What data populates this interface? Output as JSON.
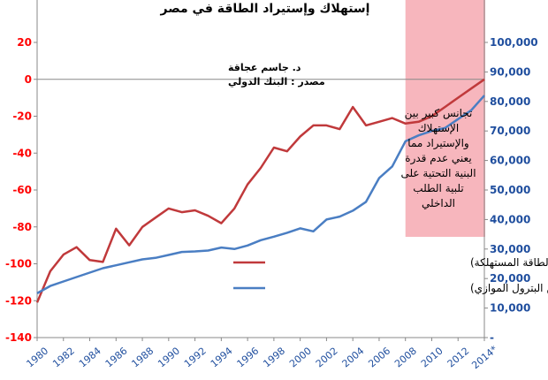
{
  "chart_data": {
    "type": "line",
    "title": "إستهلاك وإستيراد الطاقة في مصر",
    "author": "د. جاسم عجاقة",
    "source": "مصدر : البنك الدولي",
    "annotation": [
      "تجانس كبير بين",
      "الإستهلاك",
      "والإستيراد مما",
      "يعني عدم قدرة",
      "البنية التحتية على",
      "تلبية الطلب",
      "الداخلي"
    ],
    "highlight_start_year": 2008,
    "highlight_color": "#f7b6bd",
    "x": [
      1980,
      1981,
      1982,
      1983,
      1984,
      1985,
      1986,
      1987,
      1988,
      1989,
      1990,
      1991,
      1992,
      1993,
      1994,
      1995,
      1996,
      1997,
      1998,
      1999,
      2000,
      2001,
      2002,
      2003,
      2004,
      2005,
      2006,
      2007,
      2008,
      2009,
      2010,
      2011,
      2012,
      2013,
      2014
    ],
    "x_tick_labels": [
      "1980",
      "1982",
      "1984",
      "1986",
      "1988",
      "1990",
      "1992",
      "1994",
      "1996",
      "1998",
      "2000",
      "2002",
      "2004",
      "2006",
      "2008",
      "2010",
      "2012",
      "2014*"
    ],
    "y_left": {
      "ticks": [
        "20",
        "0",
        "-20",
        "-40",
        "-60",
        "-80",
        "-100",
        "-120",
        "-140"
      ],
      "ylim": [
        -140,
        20
      ]
    },
    "y_right": {
      "ticks": [
        "100,000",
        "90,000",
        "80,000",
        "70,000",
        "60,000",
        "50,000",
        "40,000",
        "30,000",
        "20,000",
        "10,000",
        "-"
      ],
      "ylim": [
        0,
        100000
      ]
    },
    "series": [
      {
        "name": "الإستيراد الصافي من الطاقة (% من الطاقة المستهلكة)",
        "axis": "left",
        "color": "#c0393b",
        "values": [
          -121,
          -104,
          -95,
          -91,
          -98,
          -99,
          -81,
          -90,
          -80,
          -75,
          -70,
          -72,
          -71,
          -74,
          -78,
          -70,
          -57,
          -48,
          -37,
          -39,
          -31,
          -25,
          -25,
          -27,
          -15,
          -25,
          -23,
          -21,
          -24,
          -23,
          -20,
          -15,
          -10,
          -5,
          0
        ]
      },
      {
        "name": "إستهلاك الطاقة (كيلو طن من البترول الموازي)",
        "axis": "right",
        "color": "#4a7ec3",
        "values": [
          15000,
          17500,
          19000,
          20500,
          22000,
          23500,
          24500,
          25500,
          26500,
          27000,
          28000,
          29000,
          29200,
          29500,
          30500,
          30000,
          31200,
          33000,
          34200,
          35500,
          37000,
          36000,
          40000,
          41000,
          43000,
          46000,
          54000,
          58000,
          66500,
          68500,
          70000,
          71000,
          74000,
          77000,
          82000
        ]
      }
    ]
  }
}
